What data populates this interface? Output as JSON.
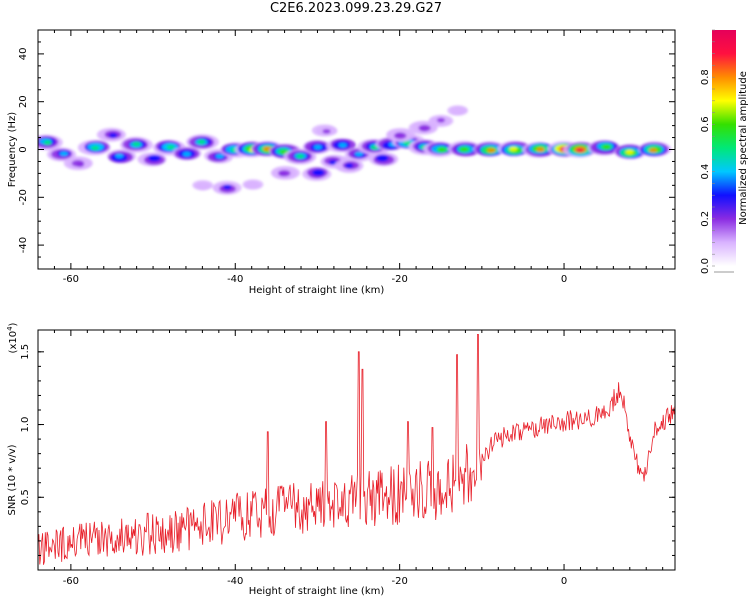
{
  "title": "C2E6.2023.099.23.29.G27",
  "chart_data": [
    {
      "type": "heatmap",
      "xlabel": "Height of straight line (km)",
      "ylabel": "Frequency (Hz)",
      "xlim": [
        -64,
        13.5
      ],
      "ylim": [
        -50,
        50
      ],
      "xticks": [
        -60,
        -40,
        -20,
        0
      ],
      "yticks": [
        40,
        20,
        0,
        -20,
        -40
      ],
      "colorbar": {
        "label": "Normalized spectral amplitude",
        "range": [
          0.0,
          1.0
        ],
        "ticks": [
          "0.0",
          "0.2",
          "0.4",
          "0.6",
          "0.8"
        ],
        "tick_values": [
          0.0,
          0.2,
          0.4,
          0.6,
          0.8
        ],
        "colormap": [
          "#ffffff",
          "#d9b3ff",
          "#8a2be2",
          "#1010ff",
          "#00c8ff",
          "#00e878",
          "#34e000",
          "#ffff00",
          "#ff8c00",
          "#ff1040",
          "#e5005a"
        ]
      },
      "blobs": [
        {
          "x": -63,
          "y": 3,
          "a": 0.45
        },
        {
          "x": -61,
          "y": -2,
          "a": 0.35
        },
        {
          "x": -59,
          "y": -6,
          "a": 0.2
        },
        {
          "x": -57,
          "y": 1,
          "a": 0.5
        },
        {
          "x": -55,
          "y": 6,
          "a": 0.25
        },
        {
          "x": -54,
          "y": -3,
          "a": 0.4
        },
        {
          "x": -52,
          "y": 2,
          "a": 0.45
        },
        {
          "x": -50,
          "y": -4,
          "a": 0.3
        },
        {
          "x": -48,
          "y": 1,
          "a": 0.5
        },
        {
          "x": -46,
          "y": -2,
          "a": 0.4
        },
        {
          "x": -44,
          "y": 3,
          "a": 0.45
        },
        {
          "x": -42,
          "y": -3,
          "a": 0.35
        },
        {
          "x": -40,
          "y": 0,
          "a": 0.5
        },
        {
          "x": -38,
          "y": 0,
          "a": 0.7
        },
        {
          "x": -36,
          "y": 0,
          "a": 0.75
        },
        {
          "x": -34,
          "y": -1,
          "a": 0.6
        },
        {
          "x": -32,
          "y": -3,
          "a": 0.45
        },
        {
          "x": -30,
          "y": 1,
          "a": 0.4
        },
        {
          "x": -28,
          "y": -5,
          "a": 0.25
        },
        {
          "x": -27,
          "y": 2,
          "a": 0.4
        },
        {
          "x": -25,
          "y": -2,
          "a": 0.35
        },
        {
          "x": -23,
          "y": 1,
          "a": 0.45
        },
        {
          "x": -21,
          "y": 2,
          "a": 0.4
        },
        {
          "x": -19,
          "y": 3,
          "a": 0.5
        },
        {
          "x": -17,
          "y": 1,
          "a": 0.45
        },
        {
          "x": -15,
          "y": 0,
          "a": 0.55
        },
        {
          "x": -12,
          "y": 0,
          "a": 0.6
        },
        {
          "x": -9,
          "y": 0,
          "a": 0.75
        },
        {
          "x": -6,
          "y": 0,
          "a": 0.7
        },
        {
          "x": -3,
          "y": 0,
          "a": 0.75
        },
        {
          "x": 0,
          "y": 0,
          "a": 0.95
        },
        {
          "x": 2,
          "y": 0,
          "a": 0.9
        },
        {
          "x": 5,
          "y": 1,
          "a": 0.6
        },
        {
          "x": 8,
          "y": -1,
          "a": 0.65
        },
        {
          "x": 11,
          "y": 0,
          "a": 0.75
        },
        {
          "x": -34,
          "y": -10,
          "a": 0.2
        },
        {
          "x": -30,
          "y": -10,
          "a": 0.3
        },
        {
          "x": -26,
          "y": -7,
          "a": 0.25
        },
        {
          "x": -22,
          "y": -4,
          "a": 0.3
        },
        {
          "x": -20,
          "y": 6,
          "a": 0.2
        },
        {
          "x": -17,
          "y": 9,
          "a": 0.2
        },
        {
          "x": -15,
          "y": 12,
          "a": 0.15
        },
        {
          "x": -13,
          "y": 16,
          "a": 0.1
        },
        {
          "x": -29,
          "y": 8,
          "a": 0.15
        },
        {
          "x": -38,
          "y": -15,
          "a": 0.12
        },
        {
          "x": -44,
          "y": -15,
          "a": 0.12
        },
        {
          "x": -41,
          "y": -16,
          "a": 0.25
        }
      ]
    },
    {
      "type": "line",
      "xlabel": "Height of straight line (km)",
      "ylabel": "SNR (10 * v/v)",
      "y_multiplier": "(x10^4)",
      "xlim": [
        -64,
        13.5
      ],
      "ylim": [
        0.0,
        1.65
      ],
      "xticks": [
        -60,
        -40,
        -20,
        0
      ],
      "yticks": [
        0.5,
        1.0,
        1.5
      ],
      "ytick_labels": [
        "0.5",
        "1.0",
        "1.5"
      ],
      "color": "#e8202a",
      "trend": [
        {
          "x": -64,
          "y": 0.15
        },
        {
          "x": -60,
          "y": 0.18
        },
        {
          "x": -56,
          "y": 0.22
        },
        {
          "x": -52,
          "y": 0.24
        },
        {
          "x": -48,
          "y": 0.26
        },
        {
          "x": -44,
          "y": 0.3
        },
        {
          "x": -40,
          "y": 0.36
        },
        {
          "x": -36,
          "y": 0.4
        },
        {
          "x": -32,
          "y": 0.42
        },
        {
          "x": -28,
          "y": 0.44
        },
        {
          "x": -24,
          "y": 0.48
        },
        {
          "x": -20,
          "y": 0.52
        },
        {
          "x": -16,
          "y": 0.55
        },
        {
          "x": -12,
          "y": 0.65
        },
        {
          "x": -10,
          "y": 0.78
        },
        {
          "x": -8,
          "y": 0.9
        },
        {
          "x": -5,
          "y": 0.95
        },
        {
          "x": -2,
          "y": 1.0
        },
        {
          "x": 0,
          "y": 1.02
        },
        {
          "x": 3,
          "y": 1.05
        },
        {
          "x": 5,
          "y": 1.08
        },
        {
          "x": 7,
          "y": 1.25
        },
        {
          "x": 8,
          "y": 0.9
        },
        {
          "x": 9.5,
          "y": 0.6
        },
        {
          "x": 11,
          "y": 0.95
        },
        {
          "x": 13.5,
          "y": 1.1
        }
      ],
      "noise_amplitude": 0.12
    }
  ]
}
